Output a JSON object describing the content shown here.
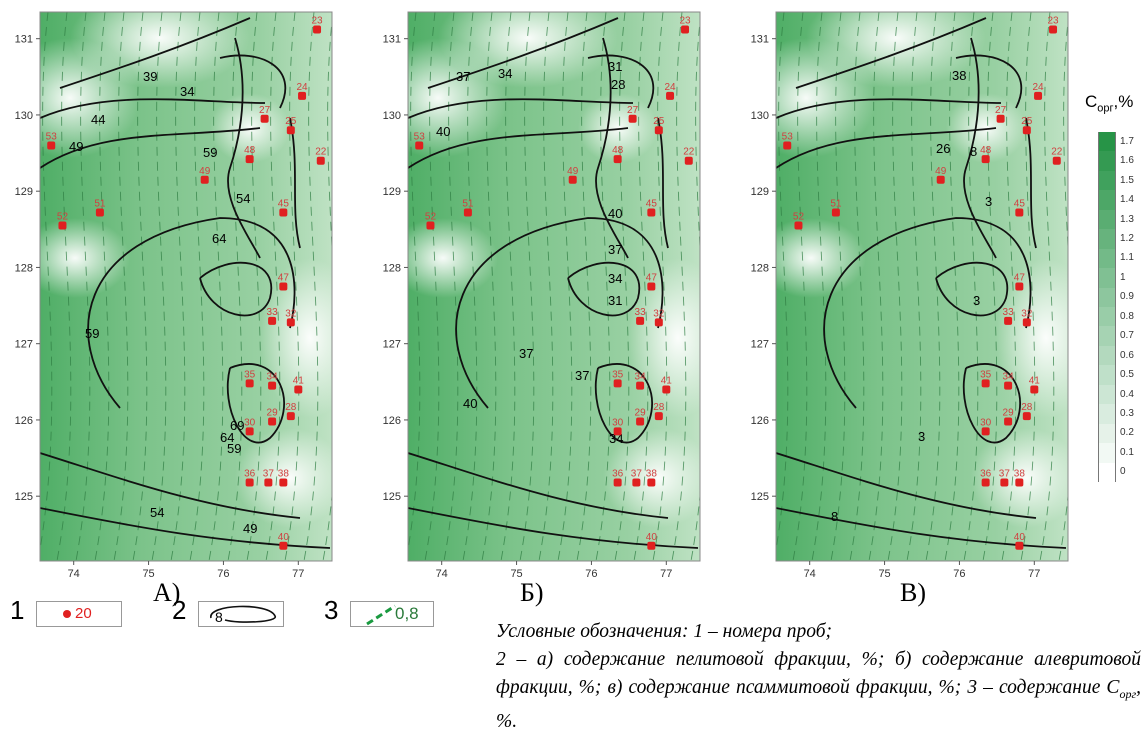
{
  "panels": [
    {
      "label": "А)",
      "letter": "a"
    },
    {
      "label": "Б)",
      "letter": "b"
    },
    {
      "label": "В)",
      "letter": "v"
    }
  ],
  "axes": {
    "x_ticks": [
      "74",
      "75",
      "76",
      "77"
    ],
    "y_ticks": [
      "131",
      "130",
      "129",
      "128",
      "127",
      "126",
      "125"
    ]
  },
  "samples": [
    {
      "id": "23",
      "x": 77.25,
      "y": 131.12
    },
    {
      "id": "24",
      "x": 77.05,
      "y": 130.25
    },
    {
      "id": "27",
      "x": 76.55,
      "y": 129.95
    },
    {
      "id": "25",
      "x": 76.9,
      "y": 129.8
    },
    {
      "id": "53",
      "x": 73.7,
      "y": 129.6
    },
    {
      "id": "22",
      "x": 77.3,
      "y": 129.4
    },
    {
      "id": "48",
      "x": 76.35,
      "y": 129.42
    },
    {
      "id": "49",
      "x": 75.75,
      "y": 129.15
    },
    {
      "id": "51",
      "x": 74.35,
      "y": 128.72
    },
    {
      "id": "45",
      "x": 76.8,
      "y": 128.72
    },
    {
      "id": "52",
      "x": 73.85,
      "y": 128.55
    },
    {
      "id": "47",
      "x": 76.8,
      "y": 127.75
    },
    {
      "id": "33",
      "x": 76.65,
      "y": 127.3
    },
    {
      "id": "32",
      "x": 76.9,
      "y": 127.28
    },
    {
      "id": "35",
      "x": 76.35,
      "y": 126.48
    },
    {
      "id": "34",
      "x": 76.65,
      "y": 126.45
    },
    {
      "id": "41",
      "x": 77.0,
      "y": 126.4
    },
    {
      "id": "29",
      "x": 76.65,
      "y": 125.98
    },
    {
      "id": "28",
      "x": 76.9,
      "y": 126.05
    },
    {
      "id": "30",
      "x": 76.35,
      "y": 125.85
    },
    {
      "id": "36",
      "x": 76.35,
      "y": 125.18
    },
    {
      "id": "37",
      "x": 76.6,
      "y": 125.18
    },
    {
      "id": "38",
      "x": 76.8,
      "y": 125.18
    },
    {
      "id": "40",
      "x": 76.8,
      "y": 124.35
    }
  ],
  "contour_labels": {
    "a": [
      "39",
      "34",
      "44",
      "49",
      "59",
      "54",
      "64",
      "59",
      "69",
      "64",
      "59",
      "54",
      "49"
    ],
    "b": [
      "37",
      "34",
      "31",
      "28",
      "40",
      "40",
      "37",
      "34",
      "31",
      "37",
      "40",
      "37",
      "34"
    ],
    "v": [
      "38",
      "26",
      "8",
      "3",
      "3",
      "3",
      "8"
    ]
  },
  "colorbar": {
    "title": "C",
    "title_sub": "орг",
    "title_suffix": ",%",
    "ticks": [
      "1.7",
      "1.6",
      "1.5",
      "1.4",
      "1.3",
      "1.2",
      "1.1",
      "1",
      "0.9",
      "0.8",
      "0.7",
      "0.6",
      "0.5",
      "0.4",
      "0.3",
      "0.2",
      "0.1",
      "0"
    ],
    "color_low": "#ffffff",
    "color_high": "#279447"
  },
  "legend": {
    "item1_num": "1",
    "item1_sample": "20",
    "item2_num": "2",
    "item2_value": "8",
    "item3_num": "3",
    "item3_value": "0,8",
    "text_line1": "Условные обозначения: 1 – номера проб;",
    "text_line2": "2 – а) содержание пелитовой фракции, %; б) содержание алевритовой фракции, %; в) содержание псаммитовой фракции, %; 3 – содержание C",
    "text_sub": "орг",
    "text_end": ", %."
  },
  "colors": {
    "sample_dot": "#e02020",
    "sample_label": "#d04040",
    "contour": "#111111"
  }
}
